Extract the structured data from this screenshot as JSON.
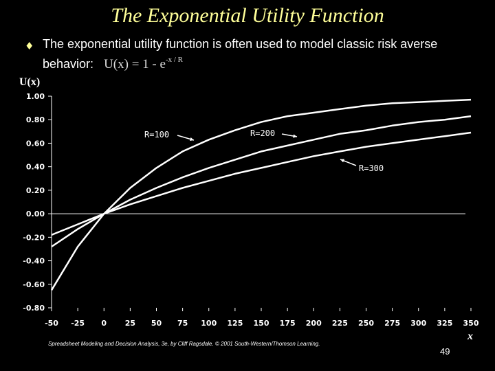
{
  "slide": {
    "title": "The Exponential Utility Function",
    "bullet_text": "The exponential utility function is often used to model classic risk averse behavior:",
    "formula": "U(x) = 1 - e",
    "formula_exponent": "-x / R",
    "footer": "Spreadsheet Modeling and Decision Analysis, 3e, by Cliff Ragsdale. © 2001 South-Western/Thomson Learning.",
    "page_number": "49",
    "bullet_icon": "diamond-bullet-icon"
  },
  "chart_data": {
    "type": "line",
    "xlabel": "x",
    "ylabel": "U(x)",
    "xlim": [
      -50,
      350
    ],
    "ylim": [
      -0.8,
      1.0
    ],
    "x_ticks": [
      -50,
      -25,
      0,
      25,
      50,
      75,
      100,
      125,
      150,
      175,
      200,
      225,
      250,
      275,
      300,
      325,
      350
    ],
    "y_ticks": [
      "1.00",
      "0.80",
      "0.60",
      "0.40",
      "0.20",
      "0.00",
      "-0.20",
      "-0.40",
      "-0.60",
      "-0.80"
    ],
    "x": [
      -50,
      -25,
      0,
      25,
      50,
      75,
      100,
      125,
      150,
      175,
      200,
      225,
      250,
      275,
      300,
      325,
      350
    ],
    "series": [
      {
        "name": "R=100",
        "values": [
          -0.65,
          -0.28,
          0.0,
          0.22,
          0.39,
          0.53,
          0.63,
          0.71,
          0.78,
          0.83,
          0.86,
          0.89,
          0.92,
          0.94,
          0.95,
          0.96,
          0.97
        ]
      },
      {
        "name": "R=200",
        "values": [
          -0.28,
          -0.13,
          0.0,
          0.12,
          0.22,
          0.31,
          0.39,
          0.46,
          0.53,
          0.58,
          0.63,
          0.68,
          0.71,
          0.75,
          0.78,
          0.8,
          0.83
        ]
      },
      {
        "name": "R=300",
        "values": [
          -0.18,
          -0.09,
          0.0,
          0.08,
          0.15,
          0.22,
          0.28,
          0.34,
          0.39,
          0.44,
          0.49,
          0.53,
          0.57,
          0.6,
          0.63,
          0.66,
          0.69
        ]
      }
    ],
    "annotations": [
      "R=100",
      "R=200",
      "R=300"
    ],
    "grid": false,
    "colors": {
      "line": "#ffffff",
      "axis": "#ffffff",
      "background": "#000000"
    }
  }
}
